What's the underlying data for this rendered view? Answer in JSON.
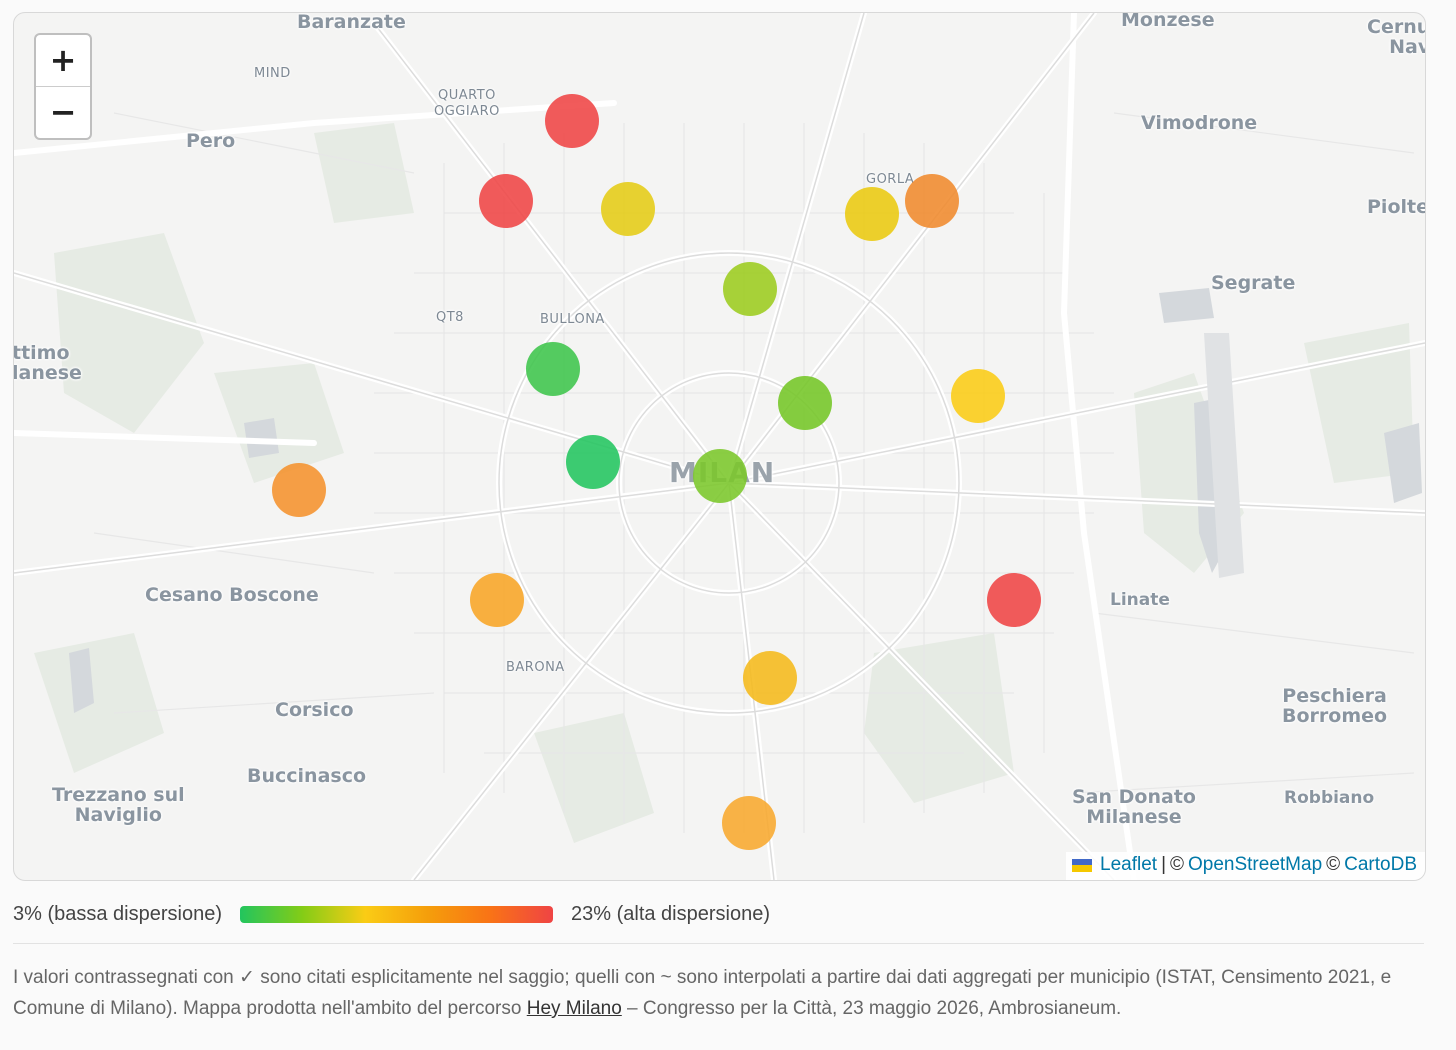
{
  "map": {
    "zoom_in_label": "+",
    "zoom_out_label": "−",
    "places": [
      {
        "name": "Baranzate",
        "cls": "big",
        "id": "baranzate"
      },
      {
        "name": "MIND",
        "cls": "small",
        "id": "mind"
      },
      {
        "name": "QUARTO\nOGGIARO",
        "cls": "small",
        "id": "quarto-oggiaro"
      },
      {
        "name": "Pero",
        "cls": "big",
        "id": "pero"
      },
      {
        "name": "Monzese",
        "cls": "big",
        "id": "monzese"
      },
      {
        "name": "Cernu\nNav",
        "cls": "big",
        "id": "cernusco"
      },
      {
        "name": "Vimodrone",
        "cls": "big",
        "id": "vimodrone"
      },
      {
        "name": "GORLA",
        "cls": "small",
        "id": "gorla"
      },
      {
        "name": "Piolte",
        "cls": "big",
        "id": "pioltello"
      },
      {
        "name": "Segrate",
        "cls": "big",
        "id": "segrate"
      },
      {
        "name": "QT8",
        "cls": "small",
        "id": "qt8"
      },
      {
        "name": "BULLONA",
        "cls": "small",
        "id": "bullona"
      },
      {
        "name": "ttimo\nlanese",
        "cls": "big",
        "id": "settimo-milanese"
      },
      {
        "name": "MILAN",
        "cls": "city",
        "id": "milan"
      },
      {
        "name": "Cesano Boscone",
        "cls": "big",
        "id": "cesano-boscone"
      },
      {
        "name": "Linate",
        "cls": "med",
        "id": "linate"
      },
      {
        "name": "BARONA",
        "cls": "small",
        "id": "barona"
      },
      {
        "name": "Corsico",
        "cls": "big",
        "id": "corsico"
      },
      {
        "name": "Peschiera\nBorromeo",
        "cls": "big",
        "id": "peschiera-borromeo"
      },
      {
        "name": "Buccinasco",
        "cls": "big",
        "id": "buccinasco"
      },
      {
        "name": "Trezzano sul\nNaviglio",
        "cls": "big",
        "id": "trezzano"
      },
      {
        "name": "San Donato\nMilanese",
        "cls": "big",
        "id": "san-donato"
      },
      {
        "name": "Robbiano",
        "cls": "med",
        "id": "robbiano"
      }
    ],
    "markers": [
      {
        "color": "#ef4444"
      },
      {
        "color": "#ef4444"
      },
      {
        "color": "#e5cc14"
      },
      {
        "color": "#eac90f"
      },
      {
        "color": "#f08a2c"
      },
      {
        "color": "#9ccc1e"
      },
      {
        "color": "#3ec54b"
      },
      {
        "color": "#74c626"
      },
      {
        "color": "#facc15"
      },
      {
        "color": "#22c55e"
      },
      {
        "color": "#7bc72a"
      },
      {
        "color": "#f5922c"
      },
      {
        "color": "#f8a526"
      },
      {
        "color": "#ef4444"
      },
      {
        "color": "#f5b91a"
      },
      {
        "color": "#f8a82e"
      }
    ],
    "attribution": {
      "leaflet": "Leaflet",
      "sep": "|",
      "copyright1": "©",
      "osm": "OpenStreetMap",
      "copyright2": "©",
      "carto": "CartoDB"
    }
  },
  "legend": {
    "low_label": "3% (bassa dispersione)",
    "high_label": "23% (alta dispersione)",
    "colors": [
      "#22c55e",
      "#84cc16",
      "#facc15",
      "#f59e0b",
      "#f97316",
      "#ef4444"
    ]
  },
  "note": {
    "text_before": "I valori contrassegnati con ✓ sono citati esplicitamente nel saggio; quelli con ~ sono interpolati a partire dai dati aggregati per municipio (ISTAT, Censimento 2021, e Comune di Milano). Mappa prodotta nell'ambito del percorso ",
    "link": "Hey Milano",
    "text_after": " – Congresso per la Città, 23 maggio 2026, Ambrosianeum."
  }
}
